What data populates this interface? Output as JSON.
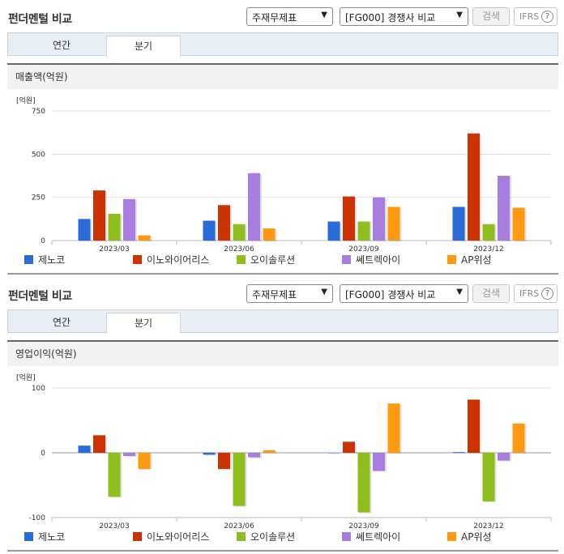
{
  "panels": [
    {
      "title": "펀더멘털 비교",
      "select_statement": "주재무제표",
      "select_group": "[FG000] 경쟁사 비교",
      "search_label": "검색",
      "ifrs_label": "IFRS",
      "help_glyph": "?",
      "tabs": [
        "연간",
        "분기"
      ],
      "active_tab": "분기",
      "metric_title": "매출액(억원)",
      "legend": [
        "제노코",
        "이노와이어리스",
        "오이솔루션",
        "쎄트렉아이",
        "AP위성"
      ]
    },
    {
      "title": "펀더멘털 비교",
      "select_statement": "주재무제표",
      "select_group": "[FG000] 경쟁사 비교",
      "search_label": "검색",
      "ifrs_label": "IFRS",
      "help_glyph": "?",
      "tabs": [
        "연간",
        "분기"
      ],
      "active_tab": "분기",
      "metric_title": "영업이익(억원)",
      "legend": [
        "제노코",
        "이노와이어리스",
        "오이솔루션",
        "쎄트렉아이",
        "AP위성"
      ]
    }
  ],
  "colors": {
    "series": [
      "#2a6ad9",
      "#cc3300",
      "#8fbf1f",
      "#a77de0",
      "#ff9a10"
    ],
    "grid": "#e3e3e3",
    "axis": "#bbbbbb"
  },
  "chart_data": [
    {
      "type": "bar",
      "unit": "[억원]",
      "categories": [
        "2023/03",
        "2023/06",
        "2023/09",
        "2023/12"
      ],
      "ylim": [
        0,
        750
      ],
      "yticks": [
        0,
        250,
        500,
        750
      ],
      "series": [
        {
          "name": "제노코",
          "values": [
            125,
            115,
            110,
            195
          ]
        },
        {
          "name": "이노와이어리스",
          "values": [
            290,
            205,
            255,
            620
          ]
        },
        {
          "name": "오이솔루션",
          "values": [
            155,
            95,
            110,
            95
          ]
        },
        {
          "name": "쎄트렉아이",
          "values": [
            240,
            390,
            250,
            375
          ]
        },
        {
          "name": "AP위성",
          "values": [
            30,
            70,
            195,
            190
          ]
        }
      ]
    },
    {
      "type": "bar",
      "unit": "[억원]",
      "categories": [
        "2023/03",
        "2023/06",
        "2023/09",
        "2023/12"
      ],
      "ylim": [
        -100,
        100
      ],
      "yticks": [
        -100,
        0,
        100
      ],
      "series": [
        {
          "name": "제노코",
          "values": [
            11,
            -3,
            0,
            1
          ]
        },
        {
          "name": "이노와이어리스",
          "values": [
            27,
            -25,
            17,
            82
          ]
        },
        {
          "name": "오이솔루션",
          "values": [
            -68,
            -82,
            -92,
            -75
          ]
        },
        {
          "name": "쎄트렉아이",
          "values": [
            -5,
            -7,
            -28,
            -12
          ]
        },
        {
          "name": "AP위성",
          "values": [
            -25,
            4,
            76,
            45
          ]
        }
      ]
    }
  ]
}
